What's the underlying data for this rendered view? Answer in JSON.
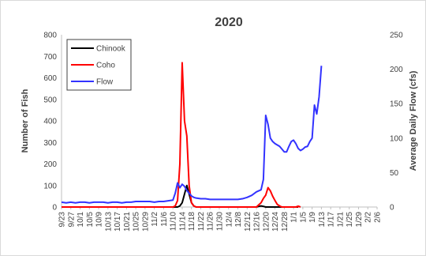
{
  "chart_data": {
    "type": "line",
    "title": "2020",
    "ylabel": "Number of Fish",
    "y2label": "Average Daily Flow (cfs)",
    "ylim": [
      0,
      800
    ],
    "y2lim": [
      0,
      250
    ],
    "yticks": [
      "0",
      "100",
      "200",
      "300",
      "400",
      "500",
      "600",
      "700",
      "800"
    ],
    "y2ticks": [
      "0",
      "50",
      "100",
      "150",
      "200",
      "250"
    ],
    "xticks": [
      "9/23",
      "9/27",
      "10/1",
      "10/5",
      "10/9",
      "10/13",
      "10/17",
      "10/21",
      "10/25",
      "10/29",
      "11/2",
      "11/6",
      "11/10",
      "11/14",
      "11/18",
      "11/22",
      "11/26",
      "11/30",
      "12/4",
      "12/8",
      "12/12",
      "12/16",
      "12/20",
      "12/24",
      "12/28",
      "1/1",
      "1/5",
      "1/9",
      "1/13",
      "1/17",
      "1/21",
      "1/25",
      "1/29",
      "2/2",
      "2/6"
    ],
    "grid": false,
    "legend_position": "top-left",
    "series": [
      {
        "name": "Chinook",
        "color": "#000000",
        "axis": "left",
        "points": [
          [
            0,
            0
          ],
          [
            50,
            0
          ],
          [
            51,
            5
          ],
          [
            52,
            20
          ],
          [
            53,
            60
          ],
          [
            54,
            100
          ],
          [
            55,
            60
          ],
          [
            56,
            20
          ],
          [
            57,
            5
          ],
          [
            58,
            0
          ],
          [
            84,
            0
          ],
          [
            85,
            3
          ],
          [
            86,
            5
          ],
          [
            87,
            3
          ],
          [
            88,
            0
          ],
          [
            102,
            0
          ]
        ]
      },
      {
        "name": "Coho",
        "color": "#ff0000",
        "axis": "left",
        "points": [
          [
            0,
            0
          ],
          [
            48,
            0
          ],
          [
            49,
            5
          ],
          [
            50,
            30
          ],
          [
            51,
            200
          ],
          [
            52,
            670
          ],
          [
            53,
            400
          ],
          [
            54,
            330
          ],
          [
            55,
            100
          ],
          [
            56,
            20
          ],
          [
            57,
            5
          ],
          [
            58,
            0
          ],
          [
            84,
            0
          ],
          [
            85,
            10
          ],
          [
            86,
            20
          ],
          [
            87,
            40
          ],
          [
            88,
            55
          ],
          [
            89,
            90
          ],
          [
            90,
            75
          ],
          [
            91,
            50
          ],
          [
            92,
            30
          ],
          [
            93,
            12
          ],
          [
            94,
            5
          ],
          [
            95,
            0
          ],
          [
            101,
            0
          ],
          [
            102,
            4
          ],
          [
            103,
            0
          ]
        ]
      },
      {
        "name": "Flow",
        "color": "#3333ff",
        "axis": "right",
        "points": [
          [
            0,
            7
          ],
          [
            2,
            6
          ],
          [
            4,
            7
          ],
          [
            6,
            6
          ],
          [
            8,
            7
          ],
          [
            10,
            7
          ],
          [
            12,
            6
          ],
          [
            14,
            7
          ],
          [
            16,
            7
          ],
          [
            18,
            7
          ],
          [
            20,
            6
          ],
          [
            22,
            7
          ],
          [
            24,
            7
          ],
          [
            26,
            6
          ],
          [
            28,
            7
          ],
          [
            30,
            7
          ],
          [
            32,
            8
          ],
          [
            34,
            8
          ],
          [
            36,
            8
          ],
          [
            38,
            8
          ],
          [
            40,
            7
          ],
          [
            42,
            8
          ],
          [
            44,
            8
          ],
          [
            46,
            9
          ],
          [
            48,
            10
          ],
          [
            49,
            20
          ],
          [
            50,
            35
          ],
          [
            51,
            28
          ],
          [
            52,
            33
          ],
          [
            53,
            30
          ],
          [
            54,
            24
          ],
          [
            55,
            20
          ],
          [
            56,
            16
          ],
          [
            57,
            14
          ],
          [
            58,
            13
          ],
          [
            60,
            12
          ],
          [
            62,
            12
          ],
          [
            64,
            11
          ],
          [
            66,
            11
          ],
          [
            68,
            11
          ],
          [
            70,
            11
          ],
          [
            72,
            11
          ],
          [
            74,
            11
          ],
          [
            76,
            11
          ],
          [
            78,
            12
          ],
          [
            80,
            14
          ],
          [
            82,
            17
          ],
          [
            84,
            22
          ],
          [
            86,
            25
          ],
          [
            87,
            40
          ],
          [
            88,
            133
          ],
          [
            89,
            120
          ],
          [
            90,
            100
          ],
          [
            91,
            95
          ],
          [
            92,
            92
          ],
          [
            93,
            90
          ],
          [
            94,
            88
          ],
          [
            95,
            84
          ],
          [
            96,
            80
          ],
          [
            97,
            80
          ],
          [
            98,
            88
          ],
          [
            99,
            95
          ],
          [
            100,
            97
          ],
          [
            101,
            92
          ],
          [
            102,
            85
          ],
          [
            103,
            82
          ],
          [
            104,
            84
          ],
          [
            105,
            87
          ],
          [
            106,
            88
          ],
          [
            107,
            95
          ],
          [
            108,
            100
          ],
          [
            109,
            148
          ],
          [
            110,
            135
          ],
          [
            111,
            160
          ],
          [
            112,
            205
          ]
        ]
      }
    ]
  }
}
